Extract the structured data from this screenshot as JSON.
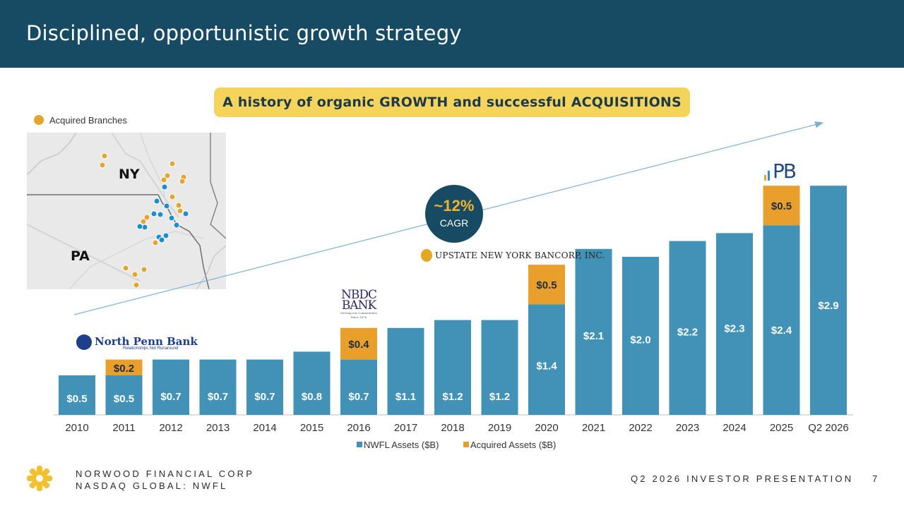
{
  "header": {
    "title": "Disciplined, opportunistic growth strategy"
  },
  "banner": {
    "text": "A history of organic GROWTH and successful ACQUISITIONS"
  },
  "map": {
    "legend_label": "Acquired Branches",
    "legend_color": "#e4a52c",
    "existing_branch_color": "#1a8fcf",
    "states": [
      "NY",
      "PA"
    ]
  },
  "cagr": {
    "value": "~12%",
    "label": "CAGR"
  },
  "logos": {
    "north_penn": {
      "name": "North Penn Bank",
      "tagline": "Relationships Not Runaround"
    },
    "nbdc": {
      "line1": "NBDC",
      "line2": "BANK",
      "tagline": "Serving our Communities Since 1876"
    },
    "upstate": {
      "name": "UPSTATE NEW YORK BANCORP, INC."
    },
    "pb": {
      "text": "PB"
    }
  },
  "chart_data": {
    "type": "bar",
    "stacked": true,
    "categories": [
      "2010",
      "2011",
      "2012",
      "2013",
      "2014",
      "2015",
      "2016",
      "2017",
      "2018",
      "2019",
      "2020",
      "2021",
      "2022",
      "2023",
      "2024",
      "2025",
      "Q2 2026"
    ],
    "series": [
      {
        "name": "NWFL Assets ($B)",
        "color": "#4292b8",
        "values": [
          0.5,
          0.5,
          0.7,
          0.7,
          0.7,
          0.8,
          0.7,
          1.1,
          1.2,
          1.2,
          1.4,
          2.1,
          2.0,
          2.2,
          2.3,
          2.4,
          2.9
        ],
        "labels": [
          "$0.5",
          "$0.5",
          "$0.7",
          "$0.7",
          "$0.7",
          "$0.8",
          "$0.7",
          "$1.1",
          "$1.2",
          "$1.2",
          "$1.4",
          "$2.1",
          "$2.0",
          "$2.2",
          "$2.3",
          "$2.4",
          "$2.9"
        ]
      },
      {
        "name": "Acquired Assets ($B)",
        "color": "#e99f2b",
        "values": [
          null,
          0.2,
          null,
          null,
          null,
          null,
          0.4,
          null,
          null,
          null,
          0.5,
          null,
          null,
          null,
          null,
          0.5,
          null
        ],
        "labels": [
          "",
          "$0.2",
          "",
          "",
          "",
          "",
          "$0.4",
          "",
          "",
          "",
          "$0.5",
          "",
          "",
          "",
          "",
          "$0.5",
          ""
        ]
      }
    ],
    "legend_position": "bottom",
    "grid": false,
    "trend_arrow": true
  },
  "footer": {
    "company_line1": "NORWOOD FINANCIAL CORP",
    "company_line2": "NASDAQ GLOBAL: NWFL",
    "presentation": "Q2 2026 INVESTOR PRESENTATION",
    "page": "7"
  }
}
